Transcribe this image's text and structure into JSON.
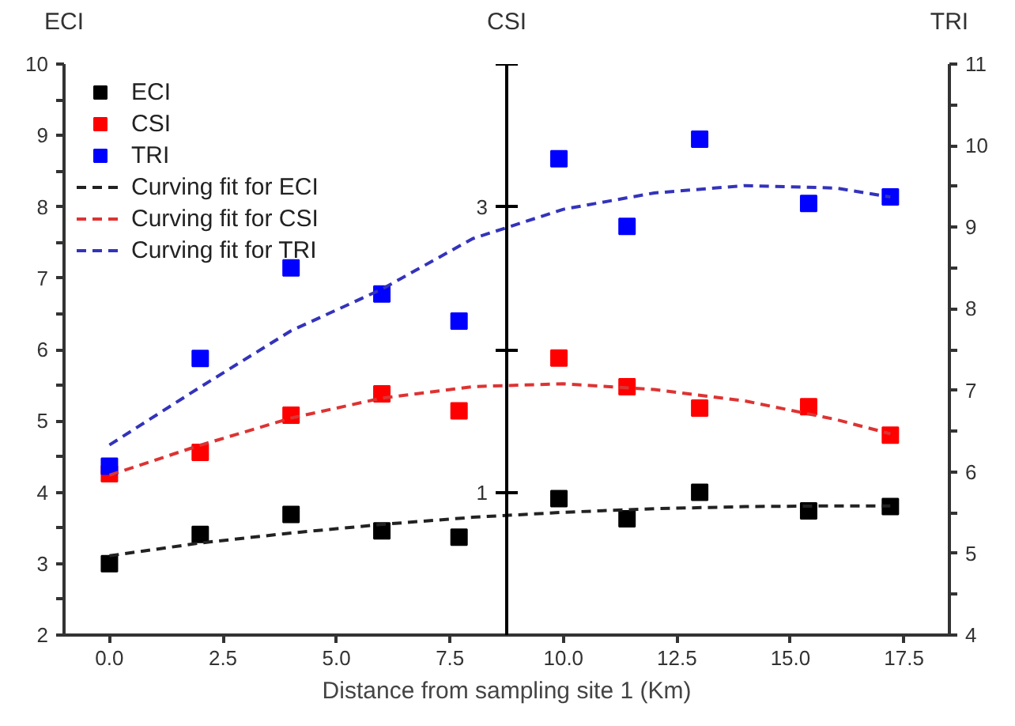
{
  "chart_data": {
    "type": "scatter",
    "xlabel": "Distance from sampling site 1 (Km)",
    "ylabel": "ECI",
    "y2label": "CSI",
    "y3label": "TRI",
    "x": [
      0,
      2,
      4,
      6,
      7.7,
      9.9,
      11.4,
      13,
      15.4,
      17.2
    ],
    "series": [
      {
        "name": "ECI",
        "color": "#000000",
        "values": [
          3.0,
          3.41,
          3.69,
          3.46,
          3.37,
          3.91,
          3.63,
          4.0,
          3.74,
          3.8
        ]
      },
      {
        "name": "CSI",
        "color": "#ff0000",
        "axis": "y2",
        "values": [
          1.13,
          1.28,
          1.54,
          1.69,
          1.57,
          1.94,
          1.74,
          1.59,
          1.6,
          1.4
        ]
      },
      {
        "name": "TRI",
        "color": "#0000ff",
        "axis": "y3",
        "values": [
          6.07,
          7.39,
          8.5,
          8.18,
          7.85,
          9.84,
          9.01,
          10.08,
          9.29,
          9.37
        ]
      },
      {
        "name": "Curving fit for ECI",
        "type": "line",
        "marker": "none",
        "line_style": "dashed",
        "color": "#222222",
        "x": [
          0,
          2,
          4,
          6,
          8,
          10,
          12,
          14,
          16,
          17.2
        ],
        "values": [
          3.11,
          3.29,
          3.43,
          3.55,
          3.65,
          3.72,
          3.77,
          3.8,
          3.81,
          3.81
        ]
      },
      {
        "name": "Curving fit for CSI",
        "type": "line",
        "marker": "none",
        "line_style": "dashed",
        "color": "#dd3333",
        "axis": "y2",
        "x": [
          0,
          2,
          4,
          6,
          8,
          10,
          12,
          14,
          16,
          17.2
        ],
        "values": [
          1.12,
          1.33,
          1.52,
          1.66,
          1.74,
          1.76,
          1.72,
          1.64,
          1.51,
          1.41
        ]
      },
      {
        "name": "Curving fit for TRI",
        "type": "line",
        "marker": "none",
        "line_style": "dashed",
        "color": "#3333bb",
        "axis": "y3",
        "x": [
          0,
          2,
          4,
          6,
          8,
          10,
          12,
          14,
          16,
          17.2
        ],
        "values": [
          6.33,
          7.04,
          7.73,
          8.24,
          8.86,
          9.22,
          9.42,
          9.51,
          9.48,
          9.37
        ]
      }
    ],
    "xlim": [
      -1,
      18.5
    ],
    "xticks": [
      {
        "value": 0,
        "label": "0.0"
      },
      {
        "value": 2.5,
        "label": "2.5"
      },
      {
        "value": 5,
        "label": "5.0"
      },
      {
        "value": 7.5,
        "label": "7.5"
      },
      {
        "value": 10,
        "label": "10.0"
      },
      {
        "value": 12.5,
        "label": "12.5"
      },
      {
        "value": 15,
        "label": "15.0"
      },
      {
        "value": 17.5,
        "label": "17.5"
      }
    ],
    "ylim": [
      2,
      10
    ],
    "yticks": [
      2,
      {
        "value": 2.5,
        "label": null
      },
      3,
      {
        "value": 3.5,
        "label": null
      },
      4,
      {
        "value": 4.5,
        "label": null
      },
      5,
      {
        "value": 5.5,
        "label": null
      },
      6,
      {
        "value": 6.5,
        "label": null
      },
      7,
      {
        "value": 7.5,
        "label": null
      },
      8,
      {
        "value": 8.5,
        "label": null
      },
      9,
      {
        "value": 9.5,
        "label": null
      },
      10
    ],
    "y2lim": [
      0,
      4
    ],
    "y2ticks": [
      1,
      {
        "value": 2,
        "label": null
      },
      3,
      {
        "value": 4,
        "label": null
      }
    ],
    "y3lim": [
      4,
      11
    ],
    "y3ticks": [
      4,
      {
        "value": 4.5,
        "label": null
      },
      5,
      {
        "value": 5.5,
        "label": null
      },
      6,
      {
        "value": 6.5,
        "label": null
      },
      7,
      {
        "value": 7.5,
        "label": null
      },
      8,
      {
        "value": 8.5,
        "label": null
      },
      9,
      {
        "value": 9.5,
        "label": null
      },
      10,
      {
        "value": 10.5,
        "label": null
      },
      11
    ],
    "marker": "square",
    "grid": false,
    "legend": "top left"
  }
}
